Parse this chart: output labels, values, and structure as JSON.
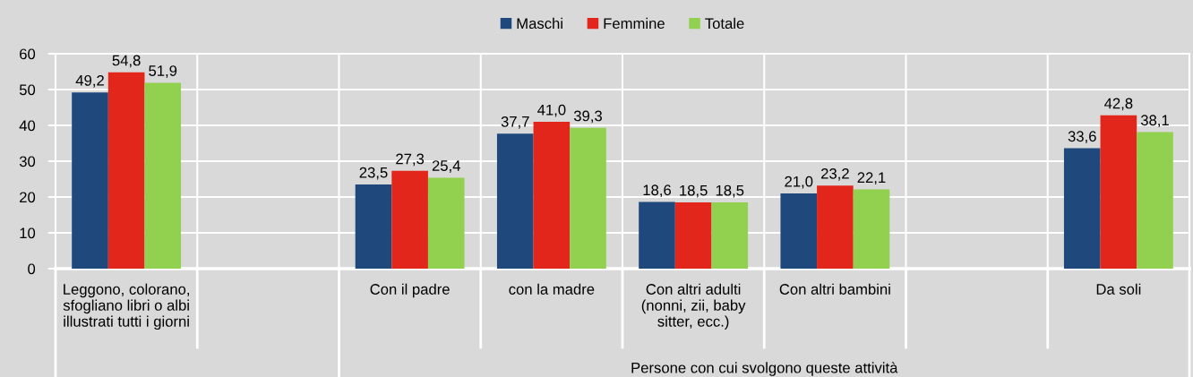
{
  "chart_data": {
    "type": "bar",
    "categories": [
      "Leggono, colorano,\nsfogliano libri o albi\nillustrati tutti i giorni",
      null,
      "Con il padre",
      "con la madre",
      "Con altri adulti\n(nonni, zii, baby\nsitter, ecc.)",
      "Con altri bambini",
      null,
      "Da soli"
    ],
    "series": [
      {
        "name": "Maschi",
        "color": "#1f497d",
        "values": [
          49.2,
          null,
          23.5,
          37.7,
          18.6,
          21.0,
          null,
          33.6
        ],
        "value_labels": [
          "49,2",
          null,
          "23,5",
          "37,7",
          "18,6",
          "21,0",
          null,
          "33,6"
        ]
      },
      {
        "name": "Femmine",
        "color": "#e3261b",
        "values": [
          54.8,
          null,
          27.3,
          41.0,
          18.5,
          23.2,
          null,
          42.8
        ],
        "value_labels": [
          "54,8",
          null,
          "27,3",
          "41,0",
          "18,5",
          "23,2",
          null,
          "42,8"
        ]
      },
      {
        "name": "Totale",
        "color": "#92d050",
        "values": [
          51.9,
          null,
          25.4,
          39.3,
          18.5,
          22.1,
          null,
          38.1
        ],
        "value_labels": [
          "51,9",
          null,
          "25,4",
          "39,3",
          "18,5",
          "22,1",
          null,
          "38,1"
        ]
      }
    ],
    "ylim": [
      0,
      60
    ],
    "yticks": [
      0,
      10,
      20,
      30,
      40,
      50,
      60
    ],
    "grid": true,
    "legend": "top",
    "annotations": [
      "Persone con cui svolgono queste attività"
    ]
  }
}
